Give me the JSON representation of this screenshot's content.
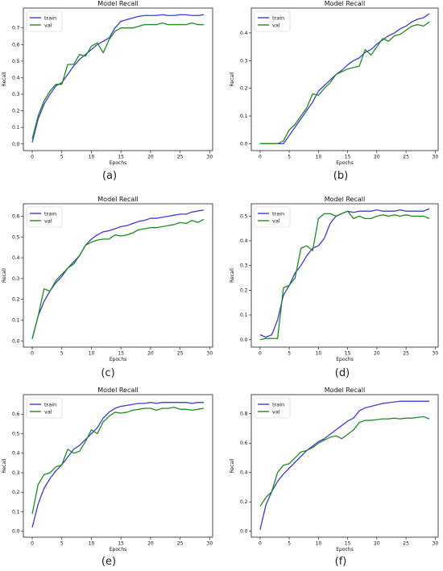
{
  "colors": {
    "train": "#3b3bd6",
    "val": "#1f8c1f",
    "axes": "#222222"
  },
  "chart_data": [
    {
      "type": "line",
      "panel_label": "(a)",
      "title": "Model Recall",
      "xlabel": "Epochs",
      "ylabel": "Recall",
      "xlim": [
        -1.5,
        30.5
      ],
      "ylim": [
        -0.04,
        0.82
      ],
      "xticks": [
        0,
        5,
        10,
        15,
        20,
        25,
        30
      ],
      "yticks": [
        0.0,
        0.1,
        0.2,
        0.3,
        0.4,
        0.5,
        0.6,
        0.7
      ],
      "ytick_labels": [
        "0.0",
        "0.1",
        "0.2",
        "0.3",
        "0.4",
        "0.5",
        "0.6",
        "0.7"
      ],
      "legend": "upper-left",
      "series": [
        {
          "name": "train",
          "x": [
            0,
            1,
            2,
            3,
            4,
            5,
            6,
            7,
            8,
            9,
            10,
            11,
            12,
            13,
            14,
            15,
            16,
            17,
            18,
            19,
            20,
            21,
            22,
            23,
            24,
            25,
            26,
            27,
            28,
            29
          ],
          "values": [
            0.01,
            0.15,
            0.24,
            0.3,
            0.35,
            0.37,
            0.42,
            0.47,
            0.51,
            0.54,
            0.57,
            0.6,
            0.62,
            0.64,
            0.7,
            0.74,
            0.75,
            0.76,
            0.77,
            0.775,
            0.775,
            0.775,
            0.78,
            0.775,
            0.775,
            0.78,
            0.78,
            0.775,
            0.775,
            0.78
          ]
        },
        {
          "name": "val",
          "x": [
            0,
            1,
            2,
            3,
            4,
            5,
            6,
            7,
            8,
            9,
            10,
            11,
            12,
            13,
            14,
            15,
            16,
            17,
            18,
            19,
            20,
            21,
            22,
            23,
            24,
            25,
            26,
            27,
            28,
            29
          ],
          "values": [
            0.03,
            0.17,
            0.26,
            0.32,
            0.36,
            0.36,
            0.48,
            0.48,
            0.54,
            0.53,
            0.59,
            0.61,
            0.55,
            0.63,
            0.68,
            0.7,
            0.7,
            0.7,
            0.71,
            0.72,
            0.72,
            0.72,
            0.73,
            0.72,
            0.72,
            0.72,
            0.72,
            0.73,
            0.72,
            0.72
          ]
        }
      ]
    },
    {
      "type": "line",
      "panel_label": "(b)",
      "title": "Model Recall",
      "xlabel": "Epochs",
      "ylabel": "Recall",
      "xlim": [
        -1.5,
        30.5
      ],
      "ylim": [
        -0.025,
        0.49
      ],
      "xticks": [
        0,
        5,
        10,
        15,
        20,
        25,
        30
      ],
      "yticks": [
        0.0,
        0.1,
        0.2,
        0.3,
        0.4
      ],
      "ytick_labels": [
        "0.0",
        "0.1",
        "0.2",
        "0.3",
        "0.4"
      ],
      "legend": "upper-left",
      "series": [
        {
          "name": "train",
          "x": [
            0,
            1,
            2,
            3,
            4,
            5,
            6,
            7,
            8,
            9,
            10,
            11,
            12,
            13,
            14,
            15,
            16,
            17,
            18,
            19,
            20,
            21,
            22,
            23,
            24,
            25,
            26,
            27,
            28,
            29
          ],
          "values": [
            0.0,
            0.0,
            0.0,
            0.0,
            0.0,
            0.03,
            0.06,
            0.09,
            0.12,
            0.15,
            0.19,
            0.21,
            0.23,
            0.25,
            0.265,
            0.285,
            0.3,
            0.31,
            0.33,
            0.34,
            0.36,
            0.375,
            0.39,
            0.4,
            0.415,
            0.425,
            0.44,
            0.45,
            0.455,
            0.47
          ]
        },
        {
          "name": "val",
          "x": [
            0,
            1,
            2,
            3,
            4,
            5,
            6,
            7,
            8,
            9,
            10,
            11,
            12,
            13,
            14,
            15,
            16,
            17,
            18,
            19,
            20,
            21,
            22,
            23,
            24,
            25,
            26,
            27,
            28,
            29
          ],
          "values": [
            0.0,
            0.0,
            0.0,
            0.0,
            0.01,
            0.05,
            0.07,
            0.1,
            0.13,
            0.18,
            0.175,
            0.2,
            0.22,
            0.25,
            0.26,
            0.27,
            0.275,
            0.28,
            0.34,
            0.32,
            0.35,
            0.38,
            0.37,
            0.39,
            0.395,
            0.41,
            0.425,
            0.43,
            0.425,
            0.44
          ]
        }
      ]
    },
    {
      "type": "line",
      "panel_label": "(c)",
      "title": "Model Recall",
      "xlabel": "Epochs",
      "ylabel": "Recall",
      "xlim": [
        -1.5,
        30.5
      ],
      "ylim": [
        -0.03,
        0.66
      ],
      "xticks": [
        0,
        5,
        10,
        15,
        20,
        25,
        30
      ],
      "yticks": [
        0.0,
        0.1,
        0.2,
        0.3,
        0.4,
        0.5,
        0.6
      ],
      "ytick_labels": [
        "0.0",
        "0.1",
        "0.2",
        "0.3",
        "0.4",
        "0.5",
        "0.6"
      ],
      "legend": "upper-left",
      "series": [
        {
          "name": "train",
          "x": [
            0,
            1,
            2,
            3,
            4,
            5,
            6,
            7,
            8,
            9,
            10,
            11,
            12,
            13,
            14,
            15,
            16,
            17,
            18,
            19,
            20,
            21,
            22,
            23,
            24,
            25,
            26,
            27,
            28,
            29
          ],
          "values": [
            0.01,
            0.12,
            0.19,
            0.24,
            0.28,
            0.31,
            0.35,
            0.38,
            0.41,
            0.46,
            0.49,
            0.51,
            0.525,
            0.53,
            0.54,
            0.55,
            0.555,
            0.565,
            0.575,
            0.58,
            0.59,
            0.59,
            0.595,
            0.6,
            0.605,
            0.61,
            0.61,
            0.62,
            0.625,
            0.63
          ]
        },
        {
          "name": "val",
          "x": [
            0,
            1,
            2,
            3,
            4,
            5,
            6,
            7,
            8,
            9,
            10,
            11,
            12,
            13,
            14,
            15,
            16,
            17,
            18,
            19,
            20,
            21,
            22,
            23,
            24,
            25,
            26,
            27,
            28,
            29
          ],
          "values": [
            0.01,
            0.12,
            0.25,
            0.24,
            0.29,
            0.32,
            0.35,
            0.37,
            0.41,
            0.46,
            0.475,
            0.485,
            0.49,
            0.49,
            0.51,
            0.505,
            0.51,
            0.52,
            0.535,
            0.54,
            0.545,
            0.545,
            0.55,
            0.555,
            0.56,
            0.57,
            0.565,
            0.58,
            0.57,
            0.585
          ]
        }
      ]
    },
    {
      "type": "line",
      "panel_label": "(d)",
      "title": "Model Recall",
      "xlabel": "Epochs",
      "ylabel": "Recall",
      "xlim": [
        -1.5,
        30.5
      ],
      "ylim": [
        -0.03,
        0.55
      ],
      "xticks": [
        0,
        5,
        10,
        15,
        20,
        25,
        30
      ],
      "yticks": [
        0.0,
        0.1,
        0.2,
        0.3,
        0.4,
        0.5
      ],
      "ytick_labels": [
        "0.0",
        "0.1",
        "0.2",
        "0.3",
        "0.4",
        "0.5"
      ],
      "legend": "upper-left",
      "series": [
        {
          "name": "train",
          "x": [
            0,
            1,
            2,
            3,
            4,
            5,
            6,
            7,
            8,
            9,
            10,
            11,
            12,
            13,
            14,
            15,
            16,
            17,
            18,
            19,
            20,
            21,
            22,
            23,
            24,
            25,
            26,
            27,
            28,
            29
          ],
          "values": [
            0.02,
            0.01,
            0.02,
            0.08,
            0.18,
            0.22,
            0.27,
            0.3,
            0.34,
            0.37,
            0.38,
            0.41,
            0.47,
            0.5,
            0.51,
            0.52,
            0.515,
            0.52,
            0.52,
            0.52,
            0.525,
            0.52,
            0.52,
            0.52,
            0.525,
            0.52,
            0.52,
            0.52,
            0.52,
            0.53
          ]
        },
        {
          "name": "val",
          "x": [
            0,
            1,
            2,
            3,
            4,
            5,
            6,
            7,
            8,
            9,
            10,
            11,
            12,
            13,
            14,
            15,
            16,
            17,
            18,
            19,
            20,
            21,
            22,
            23,
            24,
            25,
            26,
            27,
            28,
            29
          ],
          "values": [
            0.0,
            0.005,
            0.005,
            0.005,
            0.21,
            0.22,
            0.25,
            0.37,
            0.38,
            0.36,
            0.49,
            0.51,
            0.51,
            0.5,
            0.51,
            0.52,
            0.49,
            0.5,
            0.49,
            0.49,
            0.5,
            0.505,
            0.5,
            0.505,
            0.5,
            0.505,
            0.5,
            0.5,
            0.5,
            0.49
          ]
        }
      ]
    },
    {
      "type": "line",
      "panel_label": "(e)",
      "title": "Model Recall",
      "xlabel": "Epochs",
      "ylabel": "Recall",
      "xlim": [
        -1.5,
        30.5
      ],
      "ylim": [
        -0.03,
        0.7
      ],
      "xticks": [
        0,
        5,
        10,
        15,
        20,
        25,
        30
      ],
      "yticks": [
        0.0,
        0.1,
        0.2,
        0.3,
        0.4,
        0.5,
        0.6
      ],
      "ytick_labels": [
        "0.0",
        "0.1",
        "0.2",
        "0.3",
        "0.4",
        "0.5",
        "0.6"
      ],
      "legend": "upper-left",
      "series": [
        {
          "name": "train",
          "x": [
            0,
            1,
            2,
            3,
            4,
            5,
            6,
            7,
            8,
            9,
            10,
            11,
            12,
            13,
            14,
            15,
            16,
            17,
            18,
            19,
            20,
            21,
            22,
            23,
            24,
            25,
            26,
            27,
            28,
            29
          ],
          "values": [
            0.02,
            0.14,
            0.22,
            0.27,
            0.31,
            0.34,
            0.38,
            0.42,
            0.44,
            0.47,
            0.5,
            0.53,
            0.58,
            0.61,
            0.63,
            0.64,
            0.645,
            0.65,
            0.655,
            0.655,
            0.66,
            0.655,
            0.66,
            0.66,
            0.66,
            0.66,
            0.66,
            0.655,
            0.66,
            0.66
          ]
        },
        {
          "name": "val",
          "x": [
            0,
            1,
            2,
            3,
            4,
            5,
            6,
            7,
            8,
            9,
            10,
            11,
            12,
            13,
            14,
            15,
            16,
            17,
            18,
            19,
            20,
            21,
            22,
            23,
            24,
            25,
            26,
            27,
            28,
            29
          ],
          "values": [
            0.09,
            0.24,
            0.29,
            0.3,
            0.33,
            0.34,
            0.42,
            0.4,
            0.41,
            0.46,
            0.52,
            0.5,
            0.56,
            0.59,
            0.61,
            0.605,
            0.61,
            0.62,
            0.625,
            0.63,
            0.63,
            0.62,
            0.63,
            0.63,
            0.635,
            0.625,
            0.625,
            0.62,
            0.625,
            0.63
          ]
        }
      ]
    },
    {
      "type": "line",
      "panel_label": "(f)",
      "title": "Model Recall",
      "xlabel": "Epochs",
      "ylabel": "Recall",
      "xlim": [
        -1.5,
        30.5
      ],
      "ylim": [
        -0.04,
        0.93
      ],
      "xticks": [
        0,
        5,
        10,
        15,
        20,
        25,
        30
      ],
      "yticks": [
        0.0,
        0.2,
        0.4,
        0.6,
        0.8
      ],
      "ytick_labels": [
        "0.0",
        "0.2",
        "0.4",
        "0.6",
        "0.8"
      ],
      "legend": "upper-left",
      "series": [
        {
          "name": "train",
          "x": [
            0,
            1,
            2,
            3,
            4,
            5,
            6,
            7,
            8,
            9,
            10,
            11,
            12,
            13,
            14,
            15,
            16,
            17,
            18,
            19,
            20,
            21,
            22,
            23,
            24,
            25,
            26,
            27,
            28,
            29
          ],
          "values": [
            0.01,
            0.18,
            0.27,
            0.34,
            0.39,
            0.43,
            0.47,
            0.51,
            0.55,
            0.58,
            0.61,
            0.63,
            0.66,
            0.69,
            0.72,
            0.75,
            0.77,
            0.82,
            0.84,
            0.85,
            0.86,
            0.87,
            0.875,
            0.88,
            0.885,
            0.885,
            0.885,
            0.885,
            0.885,
            0.885
          ]
        },
        {
          "name": "val",
          "x": [
            0,
            1,
            2,
            3,
            4,
            5,
            6,
            7,
            8,
            9,
            10,
            11,
            12,
            13,
            14,
            15,
            16,
            17,
            18,
            19,
            20,
            21,
            22,
            23,
            24,
            25,
            26,
            27,
            28,
            29
          ],
          "values": [
            0.17,
            0.23,
            0.27,
            0.4,
            0.45,
            0.46,
            0.5,
            0.54,
            0.55,
            0.57,
            0.6,
            0.62,
            0.64,
            0.65,
            0.63,
            0.66,
            0.69,
            0.74,
            0.755,
            0.755,
            0.76,
            0.765,
            0.765,
            0.77,
            0.765,
            0.77,
            0.77,
            0.775,
            0.78,
            0.765
          ]
        }
      ]
    }
  ]
}
